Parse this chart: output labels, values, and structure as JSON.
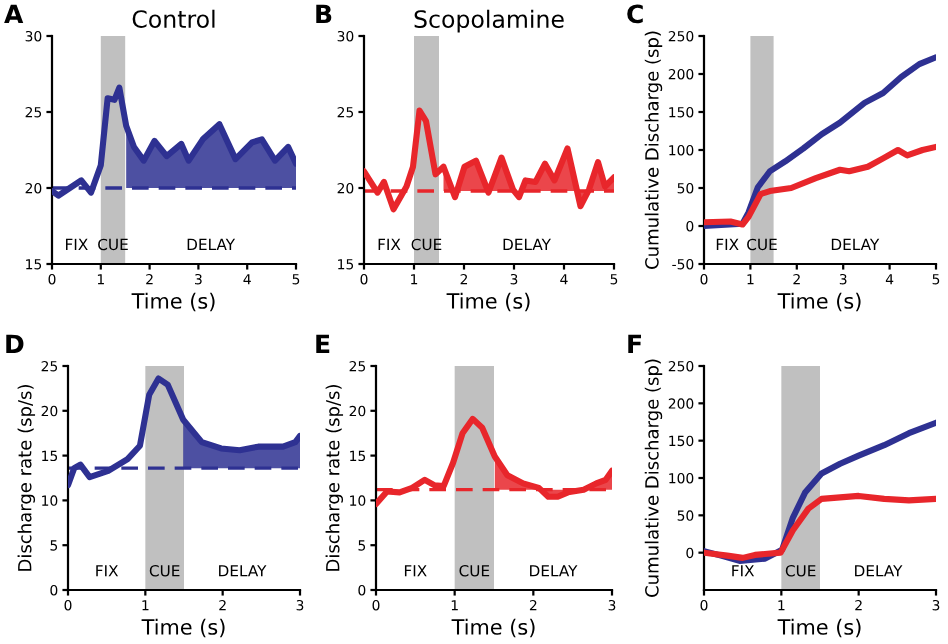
{
  "chart_data": [
    {
      "type": "line",
      "title": "Control",
      "xlabel": "Time (s)",
      "xlim": [
        0,
        5
      ],
      "ylim": [
        15,
        30
      ],
      "xticks": [
        0,
        1,
        2,
        3,
        4,
        5
      ],
      "yticks": [
        15,
        20,
        25,
        30
      ],
      "series": [
        {
          "color": "#2e3192",
          "x": [
            0,
            0.13,
            0.6,
            0.8,
            1.0,
            1.14,
            1.28,
            1.38,
            1.52,
            1.68,
            1.88,
            2.1,
            2.35,
            2.65,
            2.8,
            3.09,
            3.43,
            3.76,
            4.1,
            4.3,
            4.57,
            4.84,
            5
          ],
          "values": [
            19.8,
            19.5,
            20.5,
            19.7,
            21.5,
            25.9,
            25.8,
            26.6,
            24.1,
            22.7,
            21.8,
            23.1,
            22.1,
            22.9,
            21.8,
            23.2,
            24.2,
            21.9,
            23.0,
            23.2,
            21.8,
            22.7,
            21.6
          ],
          "lower": [
            null,
            null,
            null,
            null,
            null,
            null,
            null,
            null,
            20,
            20,
            20,
            20,
            20,
            20,
            20,
            20,
            20,
            20,
            20,
            20,
            20,
            20,
            20
          ],
          "upper": [
            null,
            null,
            null,
            null,
            null,
            null,
            null,
            null,
            24.1,
            22.7,
            21.8,
            23.1,
            22.1,
            22.9,
            21.8,
            23.2,
            24.2,
            21.9,
            23.0,
            23.2,
            21.8,
            22.7,
            21.6
          ]
        }
      ],
      "bands": [
        {
          "axis": "x",
          "from": 1,
          "to": 1.5,
          "color": "#c0c0c0"
        }
      ],
      "ref_lines": [
        {
          "axis": "y",
          "value": 20,
          "line_style": "dashed",
          "color": "#2e3192"
        }
      ],
      "annotations": [
        "A",
        "FIX",
        "CUE",
        "DELAY"
      ]
    },
    {
      "type": "line",
      "title": "Scopolamine",
      "xlabel": "Time (s)",
      "xlim": [
        0,
        5
      ],
      "ylim": [
        15,
        30
      ],
      "xticks": [
        0,
        1,
        2,
        3,
        4,
        5
      ],
      "yticks": [
        15,
        20,
        25,
        30
      ],
      "series": [
        {
          "color": "#e8262b",
          "x": [
            0,
            0.27,
            0.4,
            0.59,
            0.85,
            0.98,
            1.11,
            1.24,
            1.43,
            1.59,
            1.82,
            2.01,
            2.24,
            2.49,
            2.75,
            2.98,
            3.1,
            3.23,
            3.43,
            3.62,
            3.81,
            4.07,
            4.33,
            4.5,
            4.68,
            4.82,
            5
          ],
          "values": [
            21.1,
            19.7,
            20.4,
            18.6,
            20.1,
            21.4,
            25.1,
            24.4,
            20.9,
            21.4,
            19.4,
            21.4,
            21.8,
            19.7,
            22.0,
            19.9,
            19.4,
            20.5,
            20.4,
            21.6,
            20.5,
            22.6,
            18.8,
            19.9,
            21.7,
            20.1,
            20.7
          ],
          "lower": [
            null,
            null,
            null,
            null,
            null,
            null,
            null,
            null,
            null,
            19.8,
            19.8,
            19.8,
            19.8,
            19.8,
            19.8,
            19.8,
            19.8,
            19.8,
            19.8,
            19.8,
            19.8,
            19.8,
            19.8,
            19.8,
            19.8,
            19.8,
            19.8
          ],
          "upper": [
            null,
            null,
            null,
            null,
            null,
            null,
            null,
            null,
            null,
            21.4,
            19.4,
            21.4,
            21.8,
            19.7,
            22.0,
            19.9,
            19.4,
            20.5,
            20.4,
            21.6,
            20.5,
            22.6,
            18.8,
            19.9,
            21.7,
            20.1,
            20.7
          ]
        }
      ],
      "bands": [
        {
          "axis": "x",
          "from": 1,
          "to": 1.5,
          "color": "#c0c0c0"
        }
      ],
      "ref_lines": [
        {
          "axis": "y",
          "value": 19.8,
          "line_style": "dashed",
          "color": "#e8262b"
        }
      ],
      "annotations": [
        "B",
        "FIX",
        "CUE",
        "DELAY"
      ]
    },
    {
      "type": "line",
      "xlabel": "Time (s)",
      "ylabel": "Cumulative Discharge (sp)",
      "xlim": [
        0,
        5
      ],
      "ylim": [
        -50,
        250
      ],
      "xticks": [
        0,
        1,
        2,
        3,
        4,
        5
      ],
      "yticks": [
        -50,
        0,
        50,
        100,
        150,
        200,
        250
      ],
      "series": [
        {
          "color": "#2e3192",
          "x": [
            0,
            0.83,
            0.96,
            1.16,
            1.42,
            1.75,
            2.14,
            2.54,
            2.93,
            3.46,
            3.86,
            4.25,
            4.64,
            5
          ],
          "values": [
            0,
            3,
            18,
            51,
            72,
            85,
            102,
            121,
            136,
            162,
            175,
            196,
            213,
            222
          ]
        },
        {
          "color": "#e8262b",
          "x": [
            0,
            0.57,
            0.83,
            0.96,
            1.22,
            1.42,
            1.88,
            2.41,
            2.93,
            3.13,
            3.53,
            3.86,
            4.18,
            4.38,
            4.71,
            5
          ],
          "values": [
            5,
            6,
            2,
            12,
            42,
            46,
            50,
            63,
            74,
            72,
            78,
            89,
            100,
            93,
            100,
            104
          ]
        }
      ],
      "bands": [
        {
          "axis": "x",
          "from": 1,
          "to": 1.5,
          "color": "#c0c0c0"
        }
      ],
      "annotations": [
        "C",
        "FIX",
        "CUE",
        "DELAY"
      ]
    },
    {
      "type": "line",
      "xlabel": "Time (s)",
      "ylabel": "Discharge rate (sp/s)",
      "xlim": [
        0,
        3
      ],
      "ylim": [
        0,
        25
      ],
      "xticks": [
        0,
        1,
        2,
        3
      ],
      "yticks": [
        0,
        5,
        10,
        15,
        20,
        25
      ],
      "series": [
        {
          "color": "#2e3192",
          "x": [
            0,
            0.08,
            0.16,
            0.28,
            0.52,
            0.77,
            0.93,
            1.05,
            1.17,
            1.29,
            1.49,
            1.73,
            1.98,
            2.22,
            2.46,
            2.78,
            2.94,
            3
          ],
          "values": [
            11.7,
            13.6,
            14.0,
            12.6,
            13.3,
            14.6,
            16.1,
            21.8,
            23.6,
            22.9,
            19.0,
            16.5,
            15.8,
            15.6,
            16.0,
            16.0,
            16.5,
            17.2
          ],
          "lower": [
            null,
            null,
            null,
            null,
            null,
            null,
            null,
            null,
            null,
            null,
            13.6,
            13.6,
            13.6,
            13.6,
            13.6,
            13.6,
            13.6,
            13.6
          ],
          "upper": [
            null,
            null,
            null,
            null,
            null,
            null,
            null,
            null,
            null,
            null,
            19.0,
            16.5,
            15.8,
            15.6,
            16.0,
            16.0,
            16.5,
            17.2
          ]
        }
      ],
      "bands": [
        {
          "axis": "x",
          "from": 1,
          "to": 1.5,
          "color": "#c0c0c0"
        }
      ],
      "ref_lines": [
        {
          "axis": "y",
          "value": 13.6,
          "line_style": "dashed",
          "color": "#2e3192"
        }
      ],
      "annotations": [
        "D",
        "FIX",
        "CUE",
        "DELAY"
      ]
    },
    {
      "type": "line",
      "xlabel": "Time (s)",
      "ylabel": "Discharge rate (sp/s)",
      "xlim": [
        0,
        3
      ],
      "ylim": [
        0,
        25
      ],
      "xticks": [
        0,
        1,
        2,
        3
      ],
      "yticks": [
        0,
        5,
        10,
        15,
        20,
        25
      ],
      "series": [
        {
          "color": "#e8262b",
          "x": [
            0,
            0.14,
            0.3,
            0.46,
            0.62,
            0.74,
            0.86,
            0.98,
            1.1,
            1.23,
            1.35,
            1.51,
            1.67,
            1.87,
            2.07,
            2.19,
            2.31,
            2.44,
            2.64,
            2.8,
            2.92,
            3
          ],
          "values": [
            9.6,
            11.0,
            10.9,
            11.4,
            12.3,
            11.7,
            11.6,
            14.2,
            17.5,
            19.1,
            18.1,
            14.9,
            12.8,
            11.9,
            11.4,
            10.4,
            10.4,
            10.9,
            11.2,
            11.9,
            12.3,
            13.3
          ],
          "lower": [
            null,
            null,
            null,
            null,
            null,
            null,
            null,
            null,
            null,
            null,
            null,
            11.2,
            11.2,
            11.2,
            11.2,
            11.2,
            11.2,
            11.2,
            11.2,
            11.2,
            11.2,
            11.2
          ],
          "upper": [
            null,
            null,
            null,
            null,
            null,
            null,
            null,
            null,
            null,
            null,
            null,
            14.9,
            12.8,
            11.9,
            11.4,
            10.4,
            10.4,
            10.9,
            11.2,
            11.9,
            12.3,
            13.3
          ]
        }
      ],
      "bands": [
        {
          "axis": "x",
          "from": 1,
          "to": 1.5,
          "color": "#c0c0c0"
        }
      ],
      "ref_lines": [
        {
          "axis": "y",
          "value": 11.2,
          "line_style": "dashed",
          "color": "#e8262b"
        }
      ],
      "annotations": [
        "E",
        "FIX",
        "CUE",
        "DELAY"
      ]
    },
    {
      "type": "line",
      "xlabel": "Time (s)",
      "ylabel": "Cumulative Discharge (sp)",
      "xlim": [
        0,
        3
      ],
      "ylim": [
        -50,
        250
      ],
      "xticks": [
        0,
        1,
        2,
        3
      ],
      "yticks": [
        0,
        50,
        100,
        150,
        200,
        250
      ],
      "series": [
        {
          "color": "#2e3192",
          "x": [
            0,
            0.22,
            0.46,
            0.79,
            1.01,
            1.15,
            1.31,
            1.52,
            1.76,
            2.0,
            2.33,
            2.65,
            3
          ],
          "values": [
            2,
            -4,
            -11,
            -8,
            4,
            47,
            81,
            106,
            119,
            130,
            144,
            160,
            174
          ]
        },
        {
          "color": "#e8262b",
          "x": [
            0,
            0.3,
            0.5,
            0.66,
            0.99,
            1.15,
            1.35,
            1.52,
            1.76,
            2.0,
            2.33,
            2.65,
            3
          ],
          "values": [
            0,
            -4,
            -7,
            -3,
            0,
            30,
            59,
            72,
            74,
            76,
            72,
            70,
            72
          ]
        }
      ],
      "bands": [
        {
          "axis": "x",
          "from": 1,
          "to": 1.5,
          "color": "#c0c0c0"
        }
      ],
      "annotations": [
        "F",
        "FIX",
        "CUE",
        "DELAY"
      ]
    }
  ]
}
